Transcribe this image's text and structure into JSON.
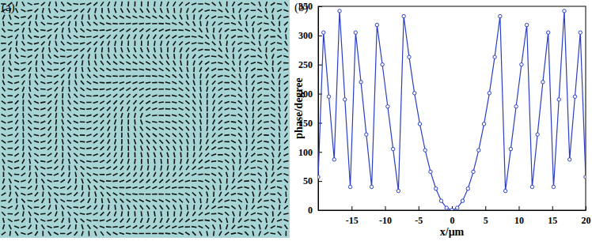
{
  "chart_data": [
    {
      "type": "pattern",
      "title": "(a)",
      "color": "#a7d5d6"
    },
    {
      "type": "line",
      "title": "(b)",
      "x_label": "x/μm",
      "y_label": "phase/degree",
      "x": [
        -20,
        -19.2,
        -18.4,
        -17.6,
        -16.8,
        -16,
        -15.2,
        -14.4,
        -13.6,
        -12.8,
        -12,
        -11.2,
        -10.4,
        -9.6,
        -8.8,
        -8,
        -7.2,
        -6.4,
        -5.6,
        -4.8,
        -4,
        -3.2,
        -2.4,
        -1.6,
        -0.8,
        0,
        0.8,
        1.6,
        2.4,
        3.2,
        4,
        4.8,
        5.6,
        6.4,
        7.2,
        8,
        8.8,
        9.6,
        10.4,
        11.2,
        12,
        12.8,
        13.6,
        14.4,
        15.2,
        16,
        16.8,
        17.6,
        18.4,
        19.2,
        20
      ],
      "values": [
        57,
        305,
        195,
        87,
        342,
        190,
        40,
        305,
        220,
        130,
        40,
        318,
        250,
        178,
        105,
        33,
        333,
        263,
        201,
        148,
        103,
        66,
        37,
        16,
        4,
        0,
        4,
        16,
        37,
        66,
        103,
        148,
        201,
        263,
        333,
        33,
        105,
        178,
        250,
        318,
        40,
        130,
        220,
        305,
        40,
        190,
        342,
        87,
        195,
        305,
        57
      ],
      "xlim": [
        -20,
        20
      ],
      "ylim": [
        0,
        350
      ],
      "xticks": [
        -15,
        -10,
        -5,
        0,
        5,
        10,
        15,
        20
      ],
      "yticks": [
        0,
        50,
        100,
        150,
        200,
        250,
        300,
        350
      ],
      "color": "#2a3fc4",
      "marker": "circle"
    }
  ]
}
